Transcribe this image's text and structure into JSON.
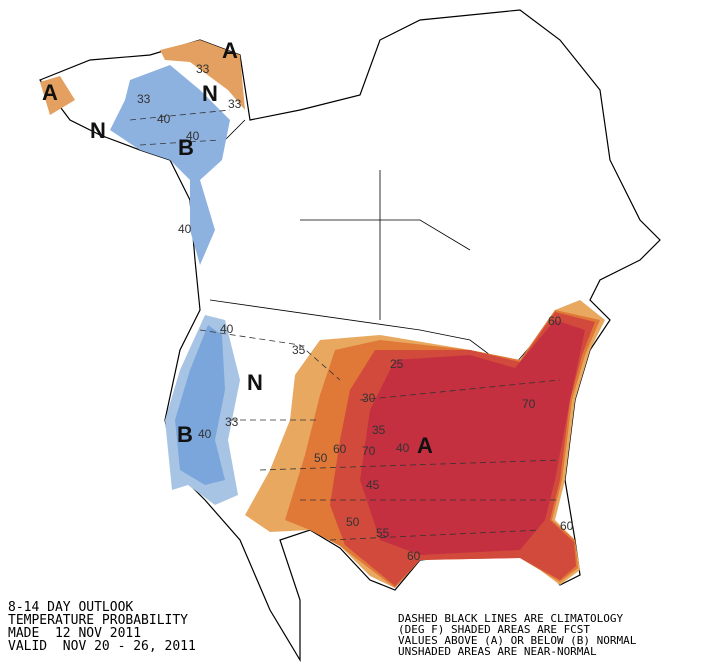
{
  "outlook_lines": [
    "8-14 DAY OUTLOOK",
    "TEMPERATURE PROBABILITY",
    "MADE  12 NOV 2011",
    "VALID  NOV 20 - 26, 2011"
  ],
  "notes": [
    "DASHED BLACK LINES ARE CLIMATOLOGY",
    "(DEG F) SHADED AREAS ARE FCST",
    "VALUES ABOVE (A) OR BELOW (B) NORMAL",
    "UNSHADED AREAS ARE NEAR-NORMAL"
  ],
  "region_labels": [
    "A",
    "A",
    "N",
    "N",
    "B",
    "N",
    "B",
    "A"
  ],
  "contour_labels": [
    "33",
    "33",
    "33",
    "40",
    "40",
    "40",
    "40",
    "33",
    "35",
    "40",
    "50",
    "60",
    "70",
    "25",
    "30",
    "35",
    "40",
    "45",
    "50",
    "55",
    "60",
    "70",
    "60",
    "60"
  ]
}
